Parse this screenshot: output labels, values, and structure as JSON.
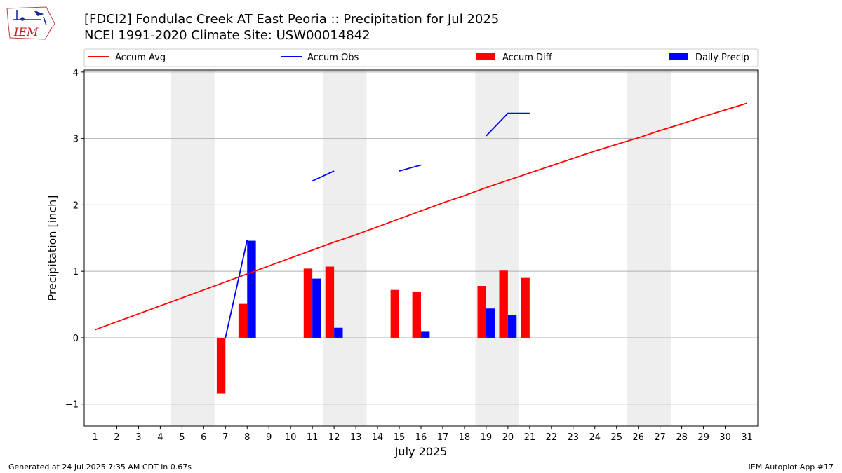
{
  "header": {
    "title": "[FDCI2] Fondulac Creek  AT East Peoria :: Precipitation for Jul 2025",
    "subtitle": "NCEI 1991-2020 Climate Site: USW00014842",
    "logo_text": "IEM"
  },
  "footer": {
    "generated": "Generated at 24 Jul 2025 7:35 AM CDT in 0.67s",
    "app": "IEM Autoplot App #17"
  },
  "chart_data": {
    "type": "bar",
    "xlabel": "July 2025",
    "ylabel": "Precipitation [inch]",
    "xlim": [
      0.5,
      31.5
    ],
    "ylim": [
      -1.33,
      4.03
    ],
    "yticks": [
      4,
      3,
      2,
      1,
      0,
      -1
    ],
    "ytick_labels": [
      "4",
      "3",
      "2",
      "1",
      "0",
      "−1"
    ],
    "x": [
      1,
      2,
      3,
      4,
      5,
      6,
      7,
      8,
      9,
      10,
      11,
      12,
      13,
      14,
      15,
      16,
      17,
      18,
      19,
      20,
      21,
      22,
      23,
      24,
      25,
      26,
      27,
      28,
      29,
      30,
      31
    ],
    "grid": "horizontal",
    "weekend_shading": [
      [
        4.5,
        6.5
      ],
      [
        11.5,
        13.5
      ],
      [
        18.5,
        20.5
      ],
      [
        25.5,
        27.5
      ]
    ],
    "legend": {
      "placement": "top",
      "entries": [
        {
          "label": "Accum Avg",
          "kind": "line",
          "color": "#ff0000"
        },
        {
          "label": "Accum Obs",
          "kind": "line",
          "color": "#0000ff"
        },
        {
          "label": "Accum Diff",
          "kind": "bar",
          "color": "#ff0000"
        },
        {
          "label": "Daily Precip",
          "kind": "bar",
          "color": "#0000ff"
        }
      ]
    },
    "series": [
      {
        "name": "Accum Avg",
        "type": "line",
        "color": "#ff0000",
        "values": [
          0.12,
          0.24,
          0.36,
          0.48,
          0.6,
          0.72,
          0.84,
          0.96,
          1.08,
          1.2,
          1.32,
          1.44,
          1.55,
          1.67,
          1.79,
          1.91,
          2.03,
          2.14,
          2.26,
          2.37,
          2.48,
          2.59,
          2.7,
          2.81,
          2.91,
          3.01,
          3.12,
          3.22,
          3.33,
          3.43,
          3.53
        ]
      },
      {
        "name": "Accum Obs",
        "type": "line",
        "color": "#0000ff",
        "values": [
          null,
          null,
          null,
          null,
          null,
          null,
          0.0,
          1.47,
          null,
          null,
          2.36,
          2.51,
          null,
          null,
          2.51,
          2.6,
          null,
          null,
          3.04,
          3.38,
          3.38,
          null,
          null,
          null,
          null,
          null,
          null,
          null,
          null,
          null,
          null
        ]
      },
      {
        "name": "Accum Diff",
        "type": "bar",
        "color": "#ff0000",
        "values": [
          null,
          null,
          null,
          null,
          null,
          null,
          -0.84,
          0.51,
          null,
          null,
          1.04,
          1.07,
          null,
          null,
          0.72,
          0.69,
          null,
          null,
          0.78,
          1.01,
          0.9,
          null,
          null,
          null,
          null,
          null,
          null,
          null,
          null,
          null,
          null
        ]
      },
      {
        "name": "Daily Precip",
        "type": "bar",
        "color": "#0000ff",
        "values": [
          null,
          null,
          null,
          null,
          null,
          null,
          0.0,
          1.46,
          null,
          null,
          0.89,
          0.15,
          null,
          null,
          null,
          0.09,
          null,
          null,
          0.44,
          0.34,
          null,
          null,
          null,
          null,
          null,
          null,
          null,
          null,
          null,
          null,
          null
        ]
      }
    ]
  }
}
